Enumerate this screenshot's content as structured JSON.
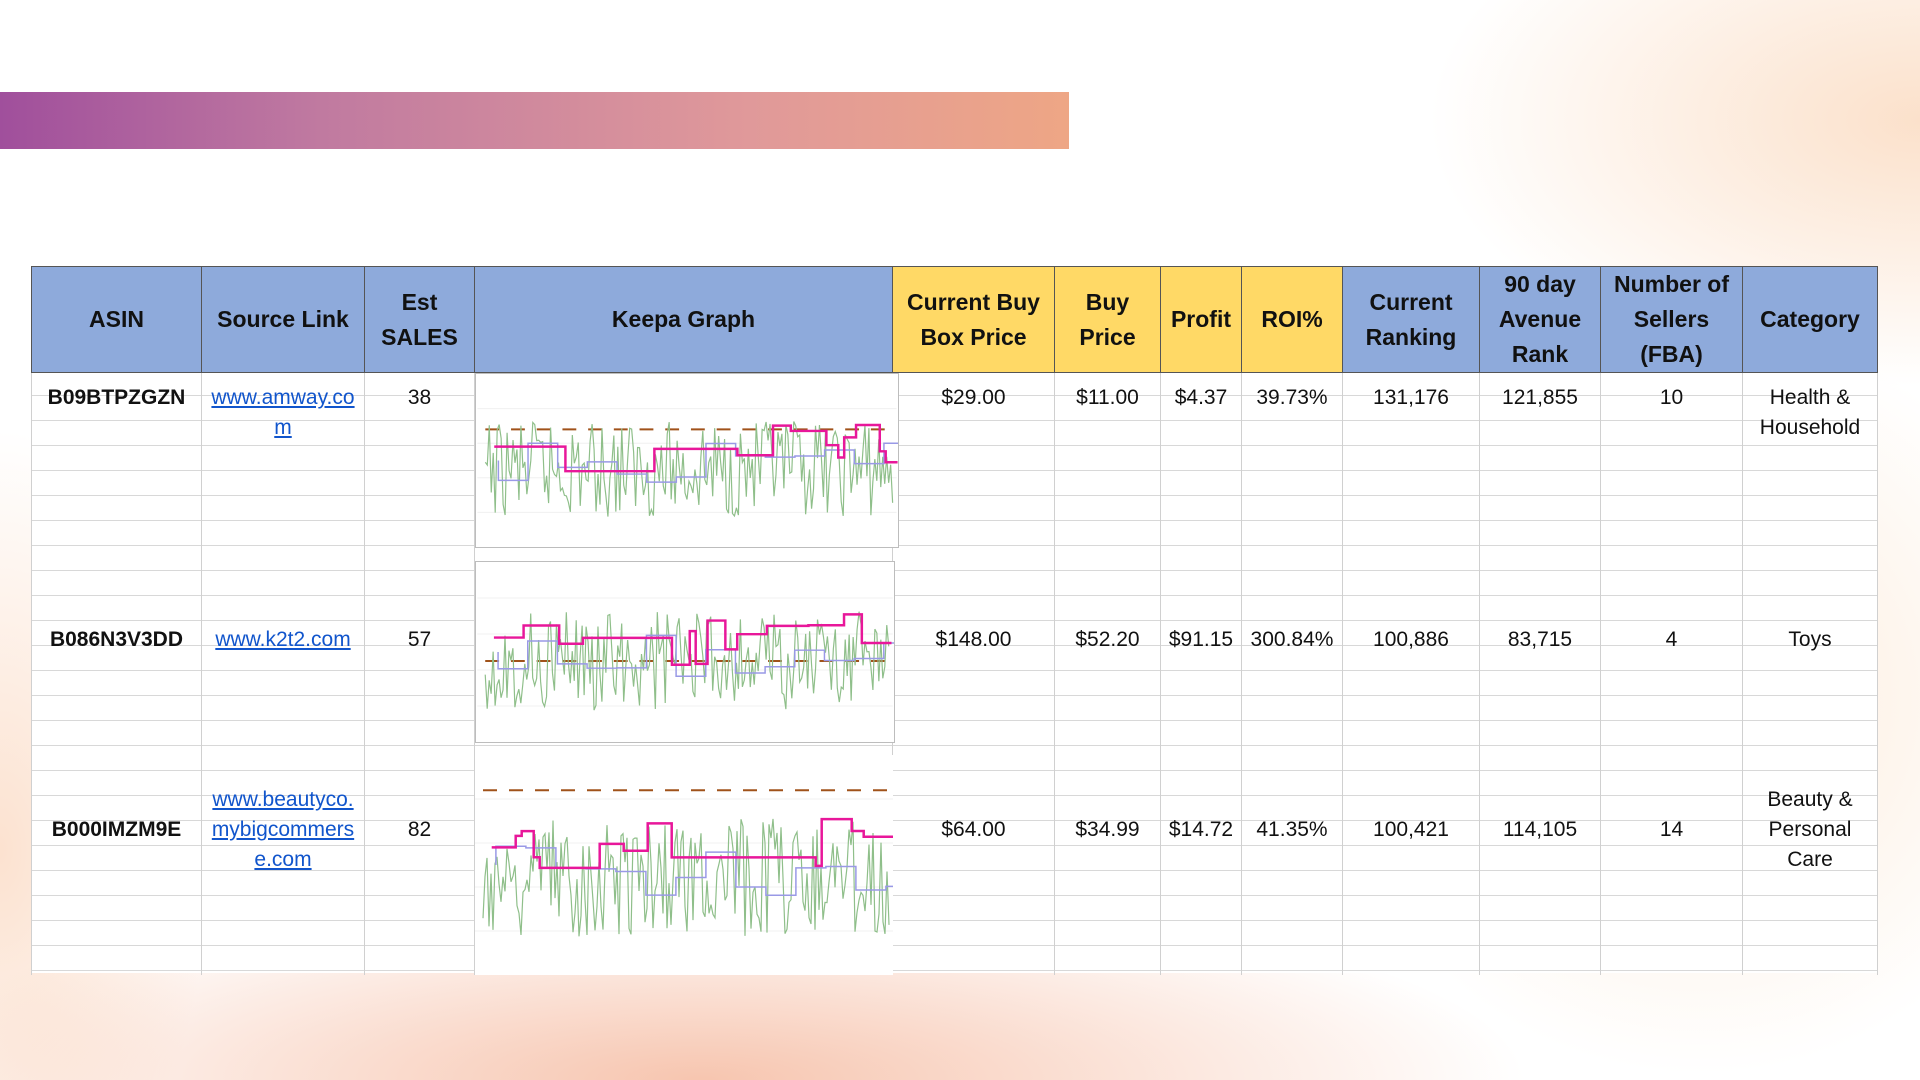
{
  "headers": [
    {
      "key": "asin",
      "label": "ASIN",
      "color": "#8eaadb"
    },
    {
      "key": "source",
      "label": "Source Link",
      "color": "#8eaadb"
    },
    {
      "key": "est_sales",
      "label": "Est SALES",
      "color": "#8eaadb"
    },
    {
      "key": "keepa",
      "label": "Keepa Graph",
      "color": "#8eaadb"
    },
    {
      "key": "buy_box",
      "label": "Current Buy Box Price",
      "color": "#ffd966"
    },
    {
      "key": "buy_price",
      "label": "Buy Price",
      "color": "#ffd966"
    },
    {
      "key": "profit",
      "label": "Profit",
      "color": "#ffd966"
    },
    {
      "key": "roi",
      "label": "ROI%",
      "color": "#ffd966"
    },
    {
      "key": "current_rank",
      "label": "Current Ranking",
      "color": "#8eaadb"
    },
    {
      "key": "avg_rank",
      "label": "90 day Avenue Rank",
      "color": "#8eaadb"
    },
    {
      "key": "sellers",
      "label": "Number of Sellers (FBA)",
      "color": "#8eaadb"
    },
    {
      "key": "category",
      "label": "Category",
      "color": "#8eaadb"
    }
  ],
  "rows": [
    {
      "asin": "B09BTPZGZN",
      "source_line1": "www.amway.co",
      "source_line2": "m",
      "source_line3": "",
      "est_sales": "38",
      "buy_box": "$29.00",
      "buy_price": "$11.00",
      "profit": "$4.37",
      "roi": "39.73%",
      "current_rank": "131,176",
      "avg_rank": "121,855",
      "sellers": "10",
      "category_line1": "Health &",
      "category_line2": "Household"
    },
    {
      "asin": "B086N3V3DD",
      "source_line1": "www.k2t2.com",
      "source_line2": "",
      "source_line3": "",
      "est_sales": "57",
      "buy_box": "$148.00",
      "buy_price": "$52.20",
      "profit": "$91.15",
      "roi": "300.84%",
      "current_rank": "100,886",
      "avg_rank": "83,715",
      "sellers": "4",
      "category_line1": "Toys",
      "category_line2": ""
    },
    {
      "asin": "B000IMZM9E",
      "source_line1": "www.beautyco.",
      "source_line2": "mybigcommers",
      "source_line3": "e.com",
      "est_sales": "82",
      "buy_box": "$64.00",
      "buy_price": "$34.99",
      "profit": "$14.72",
      "roi": "41.35%",
      "current_rank": "100,421",
      "avg_rank": "114,105",
      "sellers": "14",
      "category_line1": "Beauty &",
      "category_line2": "Personal Care"
    }
  ],
  "colors": {
    "header_blue": "#8eaadb",
    "header_yellow": "#ffd966",
    "link": "#1155cc",
    "keepa_rank": "#8fbf8a",
    "keepa_amazon": "#e8179a",
    "keepa_new": "#9999e6",
    "keepa_used": "#a0521a"
  }
}
